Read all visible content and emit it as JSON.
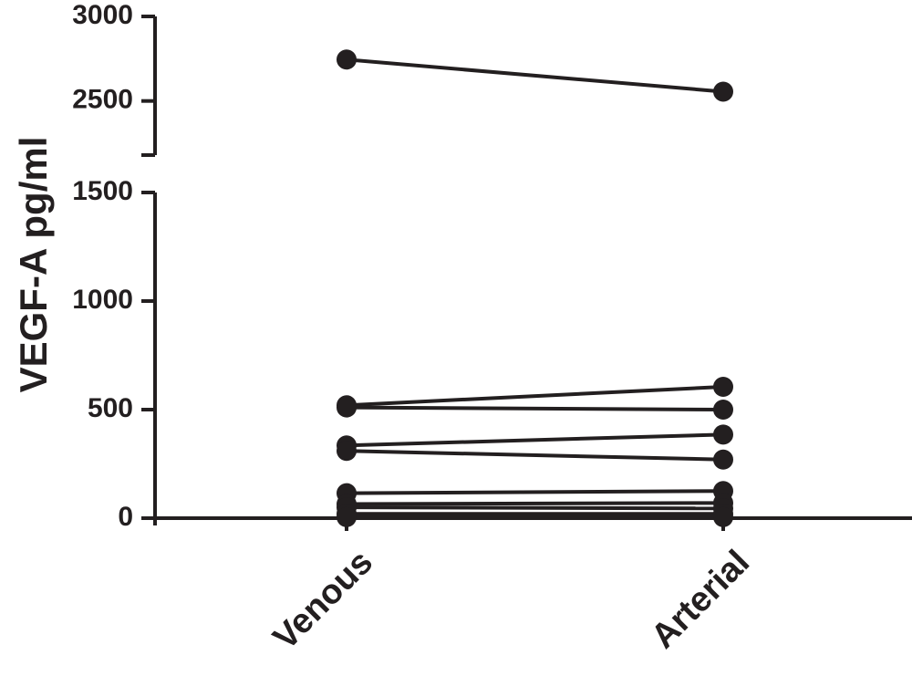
{
  "chart_data": {
    "type": "line",
    "y_label": "VEGF-A pg/ml",
    "categories": [
      "Venous",
      "Arterial"
    ],
    "color": "#231f20",
    "y_segments": [
      {
        "ylim": [
          0,
          1500
        ],
        "yticks": [
          0,
          500,
          1000,
          1500
        ]
      },
      {
        "ylim": [
          2180,
          3000
        ],
        "yticks": [
          2500,
          3000
        ]
      }
    ],
    "series": [
      {
        "values": [
          2745,
          2555
        ]
      },
      {
        "values": [
          520,
          605
        ]
      },
      {
        "values": [
          510,
          500
        ]
      },
      {
        "values": [
          335,
          385
        ]
      },
      {
        "values": [
          310,
          270
        ]
      },
      {
        "values": [
          115,
          125
        ]
      },
      {
        "values": [
          65,
          70
        ]
      },
      {
        "values": [
          50,
          45
        ]
      },
      {
        "values": [
          20,
          20
        ]
      },
      {
        "values": [
          5,
          5
        ]
      }
    ]
  }
}
